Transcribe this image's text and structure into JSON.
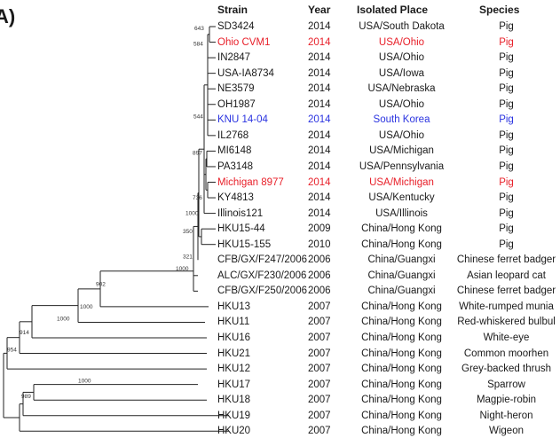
{
  "panel_label": "A)",
  "headers": {
    "strain": "Strain",
    "year": "Year",
    "place": "Isolated Place",
    "species": "Species"
  },
  "colors": {
    "red_highlight": "#e8202a",
    "blue_highlight": "#2a33e0",
    "branch": "#222222"
  },
  "rows": [
    {
      "strain": "SD3424",
      "year": "2014",
      "place": "USA/South Dakota",
      "species": "Pig",
      "color": "default"
    },
    {
      "strain": "Ohio CVM1",
      "year": "2014",
      "place": "USA/Ohio",
      "species": "Pig",
      "color": "red"
    },
    {
      "strain": "IN2847",
      "year": "2014",
      "place": "USA/Ohio",
      "species": "Pig",
      "color": "default"
    },
    {
      "strain": "USA-IA8734",
      "year": "2014",
      "place": "USA/Iowa",
      "species": "Pig",
      "color": "default"
    },
    {
      "strain": "NE3579",
      "year": "2014",
      "place": "USA/Nebraska",
      "species": "Pig",
      "color": "default"
    },
    {
      "strain": "OH1987",
      "year": "2014",
      "place": "USA/Ohio",
      "species": "Pig",
      "color": "default"
    },
    {
      "strain": "KNU 14-04",
      "year": "2014",
      "place": "South Korea",
      "species": "Pig",
      "color": "blue"
    },
    {
      "strain": "IL2768",
      "year": "2014",
      "place": "USA/Ohio",
      "species": "Pig",
      "color": "default"
    },
    {
      "strain": "MI6148",
      "year": "2014",
      "place": "USA/Michigan",
      "species": "Pig",
      "color": "default"
    },
    {
      "strain": "PA3148",
      "year": "2014",
      "place": "USA/Pennsylvania",
      "species": "Pig",
      "color": "default"
    },
    {
      "strain": "Michigan 8977",
      "year": "2014",
      "place": "USA/Michigan",
      "species": "Pig",
      "color": "red"
    },
    {
      "strain": "KY4813",
      "year": "2014",
      "place": "USA/Kentucky",
      "species": "Pig",
      "color": "default"
    },
    {
      "strain": "Illinois121",
      "year": "2014",
      "place": "USA/Illinois",
      "species": "Pig",
      "color": "default"
    },
    {
      "strain": "HKU15-44",
      "year": "2009",
      "place": "China/Hong Kong",
      "species": "Pig",
      "color": "default"
    },
    {
      "strain": "HKU15-155",
      "year": "2010",
      "place": "China/Hong Kong",
      "species": "Pig",
      "color": "default"
    },
    {
      "strain": "CFB/GX/F247/2006",
      "year": "2006",
      "place": "China/Guangxi",
      "species": "Chinese ferret badger",
      "color": "default"
    },
    {
      "strain": "ALC/GX/F230/2006",
      "year": "2006",
      "place": "China/Guangxi",
      "species": "Asian leopard cat",
      "color": "default"
    },
    {
      "strain": "CFB/GX/F250/2006",
      "year": "2006",
      "place": "China/Guangxi",
      "species": "Chinese ferret badger",
      "color": "default"
    },
    {
      "strain": "HKU13",
      "year": "2007",
      "place": "China/Hong Kong",
      "species": "White-rumped munia",
      "color": "default"
    },
    {
      "strain": "HKU11",
      "year": "2007",
      "place": "China/Hong Kong",
      "species": "Red-whiskered bulbul",
      "color": "default"
    },
    {
      "strain": "HKU16",
      "year": "2007",
      "place": "China/Hong Kong",
      "species": "White-eye",
      "color": "default"
    },
    {
      "strain": "HKU21",
      "year": "2007",
      "place": "China/Hong Kong",
      "species": "Common moorhen",
      "color": "default"
    },
    {
      "strain": "HKU12",
      "year": "2007",
      "place": "China/Hong Kong",
      "species": "Grey-backed thrush",
      "color": "default"
    },
    {
      "strain": "HKU17",
      "year": "2007",
      "place": "China/Hong Kong",
      "species": "Sparrow",
      "color": "default"
    },
    {
      "strain": "HKU18",
      "year": "2007",
      "place": "China/Hong Kong",
      "species": "Magpie-robin",
      "color": "default"
    },
    {
      "strain": "HKU19",
      "year": "2007",
      "place": "China/Hong Kong",
      "species": "Night-heron",
      "color": "default"
    },
    {
      "strain": "HKU20",
      "year": "2007",
      "place": "China/Hong Kong",
      "species": "Wigeon",
      "color": "default"
    }
  ],
  "bootstrap_values": [
    "643",
    "584",
    "544",
    "897",
    "736",
    "1000",
    "350",
    "321",
    "1000",
    "902",
    "1000",
    "1000",
    "914",
    "954",
    "1000",
    "989"
  ]
}
